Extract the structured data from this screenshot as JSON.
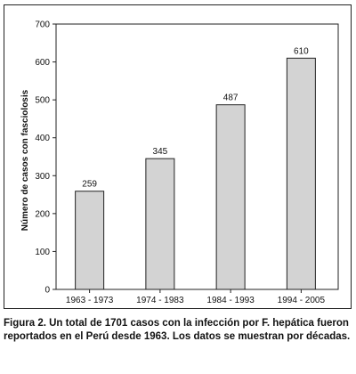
{
  "chart_data": {
    "type": "bar",
    "categories": [
      "1963 - 1973",
      "1974 - 1983",
      "1984 - 1993",
      "1994 - 2005"
    ],
    "values": [
      259,
      345,
      487,
      610
    ],
    "data_labels": [
      "259",
      "345",
      "487",
      "610"
    ],
    "title": "",
    "xlabel": "",
    "ylabel": "Número de casos con fasciolosis",
    "ylim": [
      0,
      700
    ],
    "yticks": [
      0,
      100,
      200,
      300,
      400,
      500,
      600,
      700
    ],
    "grid": false,
    "legend": "none",
    "bar_color": "#d3d3d3",
    "bar_edge_color": "#222222"
  },
  "caption": "Figura 2. Un total de 1701 casos con la infección por F. hepática fueron reportados en el Perú desde 1963. Los datos se muestran por décadas."
}
